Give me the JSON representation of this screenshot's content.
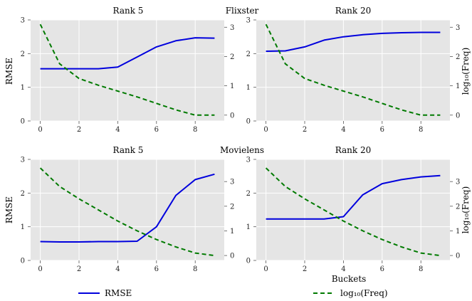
{
  "colors": {
    "rmse": "#0000dd",
    "freq": "#007a00",
    "panel_bg": "#e5e5e5",
    "grid": "#ffffff"
  },
  "legend": {
    "rmse_label": "RMSE",
    "freq_label": "log₁₀(Freq)",
    "placement": "bottom"
  },
  "chart_data": [
    {
      "type": "line",
      "group_title": "Flixster",
      "title": "Rank 5",
      "xlabel": "",
      "ylabel": "RMSE",
      "y2label": "",
      "xlim": [
        -0.5,
        9.5
      ],
      "ylim": [
        0,
        3
      ],
      "y2lim": [
        -0.2,
        3.25
      ],
      "xticks": [
        0,
        2,
        4,
        6,
        8
      ],
      "yticks": [
        0,
        1,
        2,
        3
      ],
      "y2ticks": [
        0,
        1,
        2,
        3
      ],
      "x": [
        0,
        1,
        2,
        3,
        4,
        5,
        6,
        7,
        8,
        9
      ],
      "series": [
        {
          "name": "RMSE",
          "axis": "left",
          "style": "solid",
          "values": [
            1.55,
            1.55,
            1.55,
            1.55,
            1.6,
            1.9,
            2.2,
            2.38,
            2.47,
            2.46
          ]
        },
        {
          "name": "log₁₀(Freq)",
          "axis": "right",
          "style": "dashed",
          "values": [
            3.1,
            1.75,
            1.25,
            1.02,
            0.82,
            0.62,
            0.4,
            0.18,
            0.0,
            0.0
          ]
        }
      ]
    },
    {
      "type": "line",
      "group_title": "",
      "title": "Rank 20",
      "xlabel": "",
      "ylabel": "",
      "y2label": "log₁₀(Freq)",
      "xlim": [
        -0.5,
        9.5
      ],
      "ylim": [
        0,
        3
      ],
      "y2lim": [
        -0.2,
        3.25
      ],
      "xticks": [
        0,
        2,
        4,
        6,
        8
      ],
      "yticks": [
        0,
        1,
        2,
        3
      ],
      "y2ticks": [
        0,
        1,
        2,
        3
      ],
      "x": [
        0,
        1,
        2,
        3,
        4,
        5,
        6,
        7,
        8,
        9
      ],
      "series": [
        {
          "name": "RMSE",
          "axis": "left",
          "style": "solid",
          "values": [
            2.07,
            2.08,
            2.2,
            2.4,
            2.5,
            2.56,
            2.6,
            2.62,
            2.63,
            2.63
          ]
        },
        {
          "name": "log₁₀(Freq)",
          "axis": "right",
          "style": "dashed",
          "values": [
            3.1,
            1.75,
            1.25,
            1.02,
            0.82,
            0.62,
            0.4,
            0.18,
            0.0,
            0.0
          ]
        }
      ]
    },
    {
      "type": "line",
      "group_title": "Movielens",
      "title": "Rank 5",
      "xlabel": "",
      "ylabel": "RMSE",
      "y2label": "",
      "xlim": [
        -0.5,
        9.5
      ],
      "ylim": [
        0,
        3
      ],
      "y2lim": [
        -0.2,
        3.9
      ],
      "xticks": [
        0,
        2,
        4,
        6,
        8
      ],
      "yticks": [
        0,
        1,
        2,
        3
      ],
      "y2ticks": [
        0,
        1,
        2,
        3
      ],
      "x": [
        0,
        1,
        2,
        3,
        4,
        5,
        6,
        7,
        8,
        9
      ],
      "series": [
        {
          "name": "RMSE",
          "axis": "left",
          "style": "solid",
          "values": [
            0.56,
            0.55,
            0.55,
            0.56,
            0.56,
            0.57,
            1.0,
            1.93,
            2.4,
            2.56
          ]
        },
        {
          "name": "log₁₀(Freq)",
          "axis": "right",
          "style": "dashed",
          "values": [
            3.55,
            2.8,
            2.3,
            1.85,
            1.4,
            1.0,
            0.65,
            0.35,
            0.1,
            0.0
          ]
        }
      ]
    },
    {
      "type": "line",
      "group_title": "",
      "title": "Rank 20",
      "xlabel": "Buckets",
      "ylabel": "",
      "y2label": "log₁₀(Freq)",
      "xlim": [
        -0.5,
        9.5
      ],
      "ylim": [
        0,
        3
      ],
      "y2lim": [
        -0.2,
        3.9
      ],
      "xticks": [
        0,
        2,
        4,
        6,
        8
      ],
      "yticks": [
        0,
        1,
        2,
        3
      ],
      "y2ticks": [
        0,
        1,
        2,
        3
      ],
      "x": [
        0,
        1,
        2,
        3,
        4,
        5,
        6,
        7,
        8,
        9
      ],
      "series": [
        {
          "name": "RMSE",
          "axis": "left",
          "style": "solid",
          "values": [
            1.23,
            1.23,
            1.23,
            1.23,
            1.3,
            1.95,
            2.28,
            2.4,
            2.48,
            2.52
          ]
        },
        {
          "name": "log₁₀(Freq)",
          "axis": "right",
          "style": "dashed",
          "values": [
            3.55,
            2.8,
            2.3,
            1.85,
            1.4,
            1.0,
            0.65,
            0.35,
            0.1,
            0.0
          ]
        }
      ]
    }
  ]
}
